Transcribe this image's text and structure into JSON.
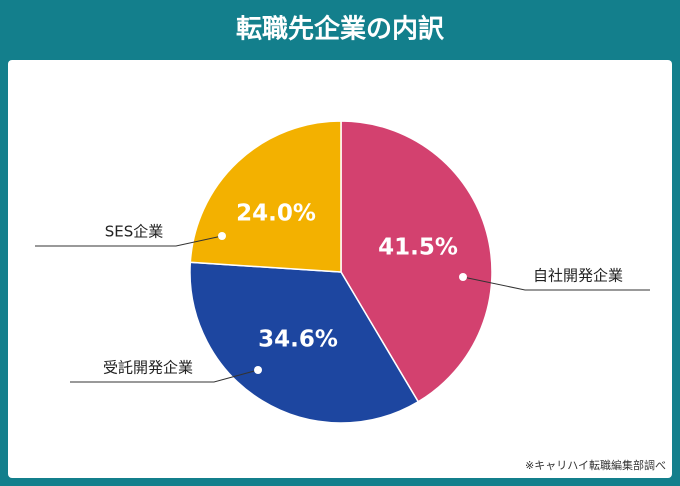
{
  "chart_data": {
    "type": "pie",
    "title": "転職先企業の内訳",
    "categories": [
      "自社開発企業",
      "受託開発企業",
      "SES企業"
    ],
    "values": [
      41.5,
      34.6,
      24.0
    ],
    "value_labels": [
      "41.5%",
      "34.6%",
      "24.0%"
    ],
    "colors": [
      "#d3416f",
      "#1d46a0",
      "#f3b100"
    ],
    "note": "※キャリハイ転職編集部調べ"
  }
}
